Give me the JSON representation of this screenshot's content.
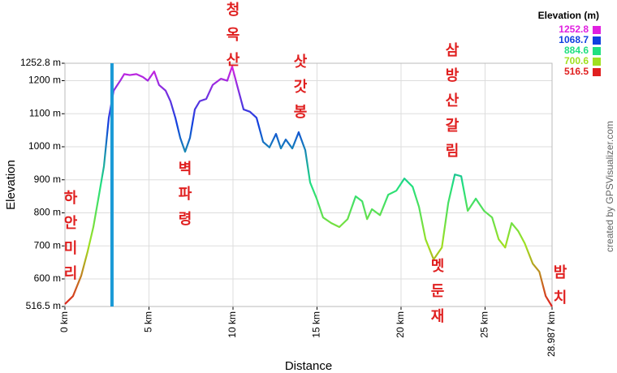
{
  "chart_data": {
    "type": "line",
    "x_label": "Distance",
    "y_label": "Elevation",
    "credit": "created by GPSVisualizer.com",
    "x": [
      0,
      0.48,
      0.97,
      1.35,
      1.69,
      2.03,
      2.32,
      2.61,
      2.9,
      3.29,
      3.53,
      3.86,
      4.25,
      4.64,
      4.93,
      5.31,
      5.6,
      5.99,
      6.28,
      6.57,
      6.86,
      7.15,
      7.44,
      7.73,
      8.02,
      8.41,
      8.79,
      9.28,
      9.66,
      9.95,
      10.24,
      10.63,
      11.01,
      11.4,
      11.79,
      12.17,
      12.56,
      12.85,
      13.14,
      13.53,
      13.91,
      14.3,
      14.59,
      14.98,
      15.36,
      15.85,
      16.33,
      16.82,
      17.3,
      17.69,
      17.98,
      18.27,
      18.75,
      19.24,
      19.72,
      20.2,
      20.69,
      21.07,
      21.46,
      21.94,
      22.43,
      22.81,
      23.2,
      23.58,
      23.97,
      24.45,
      24.94,
      25.42,
      25.81,
      26.2,
      26.58,
      26.97,
      27.36,
      27.84,
      28.23,
      28.61,
      28.987
    ],
    "values": [
      524,
      548,
      610,
      683,
      757,
      855,
      941,
      1088,
      1170,
      1200,
      1220,
      1217,
      1220,
      1211,
      1200,
      1228,
      1187,
      1170,
      1138,
      1088,
      1027,
      985,
      1027,
      1113,
      1138,
      1145,
      1187,
      1206,
      1200,
      1243,
      1187,
      1113,
      1106,
      1088,
      1015,
      998,
      1039,
      995,
      1022,
      995,
      1044,
      990,
      892,
      843,
      786,
      769,
      757,
      781,
      850,
      835,
      781,
      811,
      793,
      855,
      867,
      904,
      879,
      818,
      720,
      659,
      695,
      830,
      916,
      911,
      806,
      843,
      806,
      786,
      720,
      695,
      769,
      745,
      708,
      646,
      622,
      548,
      516.5
    ],
    "xlim": [
      0,
      28.987
    ],
    "xticks": [
      {
        "value": 0,
        "label": "0 km"
      },
      {
        "value": 5,
        "label": "5 km"
      },
      {
        "value": 10,
        "label": "10 km"
      },
      {
        "value": 15,
        "label": "15 km"
      },
      {
        "value": 20,
        "label": "20 km"
      },
      {
        "value": 25,
        "label": "25 km"
      },
      {
        "value": 28.987,
        "label": "28.987 km"
      }
    ],
    "ylim": [
      516.5,
      1252.8
    ],
    "yticks": [
      {
        "value": 516.5,
        "label": "516.5 m"
      },
      {
        "value": 600,
        "label": "600 m"
      },
      {
        "value": 700,
        "label": "700 m"
      },
      {
        "value": 800,
        "label": "800 m"
      },
      {
        "value": 900,
        "label": "900 m"
      },
      {
        "value": 1000,
        "label": "1000 m"
      },
      {
        "value": 1100,
        "label": "1100 m"
      },
      {
        "value": 1200,
        "label": "1200 m"
      },
      {
        "value": 1252.8,
        "label": "1252.8 m"
      }
    ],
    "grid": true,
    "legend": {
      "title": "Elevation (m)",
      "position": "top-right",
      "items": [
        {
          "value": 1252.8,
          "color": "#e020e0"
        },
        {
          "value": 1068.7,
          "color": "#1040e0"
        },
        {
          "value": 884.6,
          "color": "#20e080"
        },
        {
          "value": 700.6,
          "color": "#a0e020"
        },
        {
          "value": 516.5,
          "color": "#e02020"
        }
      ]
    },
    "marker": {
      "x": 2.8,
      "color": "#1a9ad6"
    },
    "annotations": [
      "청옥산",
      "삿갓봉",
      "벽파령",
      "하안미리",
      "삼방산갈림",
      "멧둔재",
      "밤치"
    ]
  }
}
